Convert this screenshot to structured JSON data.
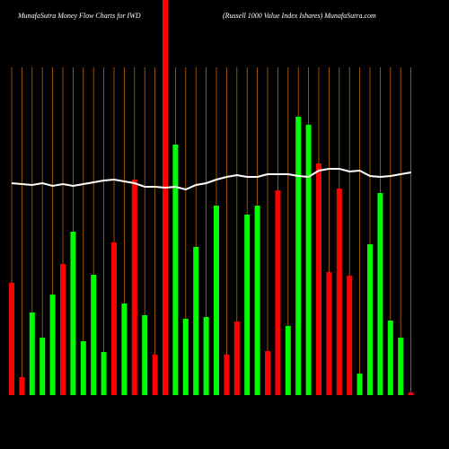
{
  "chart_data": {
    "type": "bar",
    "title": "MunafaSutra  Money Flow  Charts for IWD",
    "subtitle": "(Russell 1000   Value    Index Ishares) MunafaSutra.com",
    "background": "#000000",
    "grid": true,
    "grid_color": "#b8660b",
    "categories": [
      null,
      null,
      null,
      null,
      null,
      null,
      null,
      null,
      null,
      null,
      null,
      null,
      null,
      null,
      null,
      null,
      null,
      null,
      null,
      null,
      null,
      null,
      null,
      null,
      null,
      null,
      null,
      null,
      null,
      null,
      null,
      null,
      null,
      null,
      null,
      null,
      null,
      null,
      null,
      null
    ],
    "values": [
      125,
      20,
      92,
      64,
      112,
      146,
      182,
      60,
      134,
      48,
      170,
      102,
      240,
      89,
      45,
      440,
      279,
      85,
      165,
      87,
      211,
      45,
      82,
      201,
      211,
      49,
      228,
      77,
      310,
      301,
      258,
      137,
      230,
      133,
      24,
      168,
      225,
      83,
      64,
      3
    ],
    "colors": [
      "#ff0000",
      "#ff0000",
      "#00ff00",
      "#00ff00",
      "#00ff00",
      "#ff0000",
      "#00ff00",
      "#00ff00",
      "#00ff00",
      "#00ff00",
      "#ff0000",
      "#00ff00",
      "#ff0000",
      "#00ff00",
      "#ff0000",
      "#ff0000",
      "#00ff00",
      "#00ff00",
      "#00ff00",
      "#00ff00",
      "#00ff00",
      "#ff0000",
      "#ff0000",
      "#00ff00",
      "#00ff00",
      "#ff0000",
      "#ff0000",
      "#00ff00",
      "#00ff00",
      "#00ff00",
      "#ff0000",
      "#ff0000",
      "#ff0000",
      "#ff0000",
      "#00ff00",
      "#00ff00",
      "#00ff00",
      "#00ff00",
      "#00ff00",
      "#ff0000"
    ],
    "line": {
      "color": "#ffffff",
      "values": [
        236,
        235,
        234,
        236,
        233,
        235,
        233,
        235,
        237,
        239,
        240,
        238,
        236,
        232,
        232,
        231,
        232,
        229,
        234,
        236,
        240,
        243,
        245,
        243,
        243,
        246,
        246,
        246,
        244,
        243,
        250,
        252,
        252,
        249,
        250,
        244,
        243,
        244,
        246,
        248
      ]
    },
    "ylim": [
      0,
      440
    ]
  }
}
